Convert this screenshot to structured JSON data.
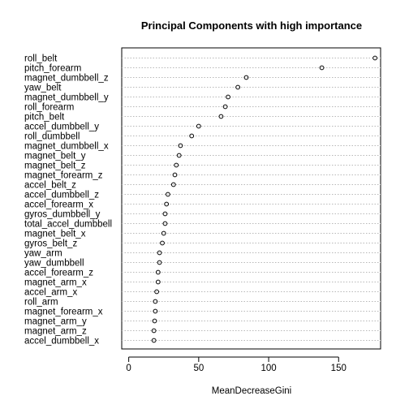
{
  "chart_data": {
    "type": "dotchart",
    "title": "Principal Components with high importance",
    "xlabel": "MeanDecreaseGini",
    "ylabel": "",
    "xlim": [
      -5,
      180
    ],
    "xticks": [
      0,
      50,
      100,
      150
    ],
    "grid": "dotted horizontal",
    "categories": [
      "roll_belt",
      "pitch_forearm",
      "magnet_dumbbell_z",
      "yaw_belt",
      "magnet_dumbbell_y",
      "roll_forearm",
      "pitch_belt",
      "accel_dumbbell_y",
      "roll_dumbbell",
      "magnet_dumbbell_x",
      "magnet_belt_y",
      "magnet_belt_z",
      "magnet_forearm_z",
      "accel_belt_z",
      "accel_dumbbell_z",
      "accel_forearm_x",
      "gyros_dumbbell_y",
      "total_accel_dumbbell",
      "magnet_belt_x",
      "gyros_belt_z",
      "yaw_arm",
      "yaw_dumbbell",
      "accel_forearm_z",
      "magnet_arm_x",
      "accel_arm_x",
      "roll_arm",
      "magnet_forearm_x",
      "magnet_arm_y",
      "magnet_arm_z",
      "accel_dumbbell_x"
    ],
    "values": [
      176,
      138,
      84,
      78,
      71,
      69,
      66,
      50,
      45,
      37,
      36,
      34,
      33,
      32,
      28,
      27,
      26,
      26,
      25,
      24,
      22,
      22,
      21,
      21,
      20,
      19,
      19,
      18.5,
      18,
      18
    ]
  }
}
